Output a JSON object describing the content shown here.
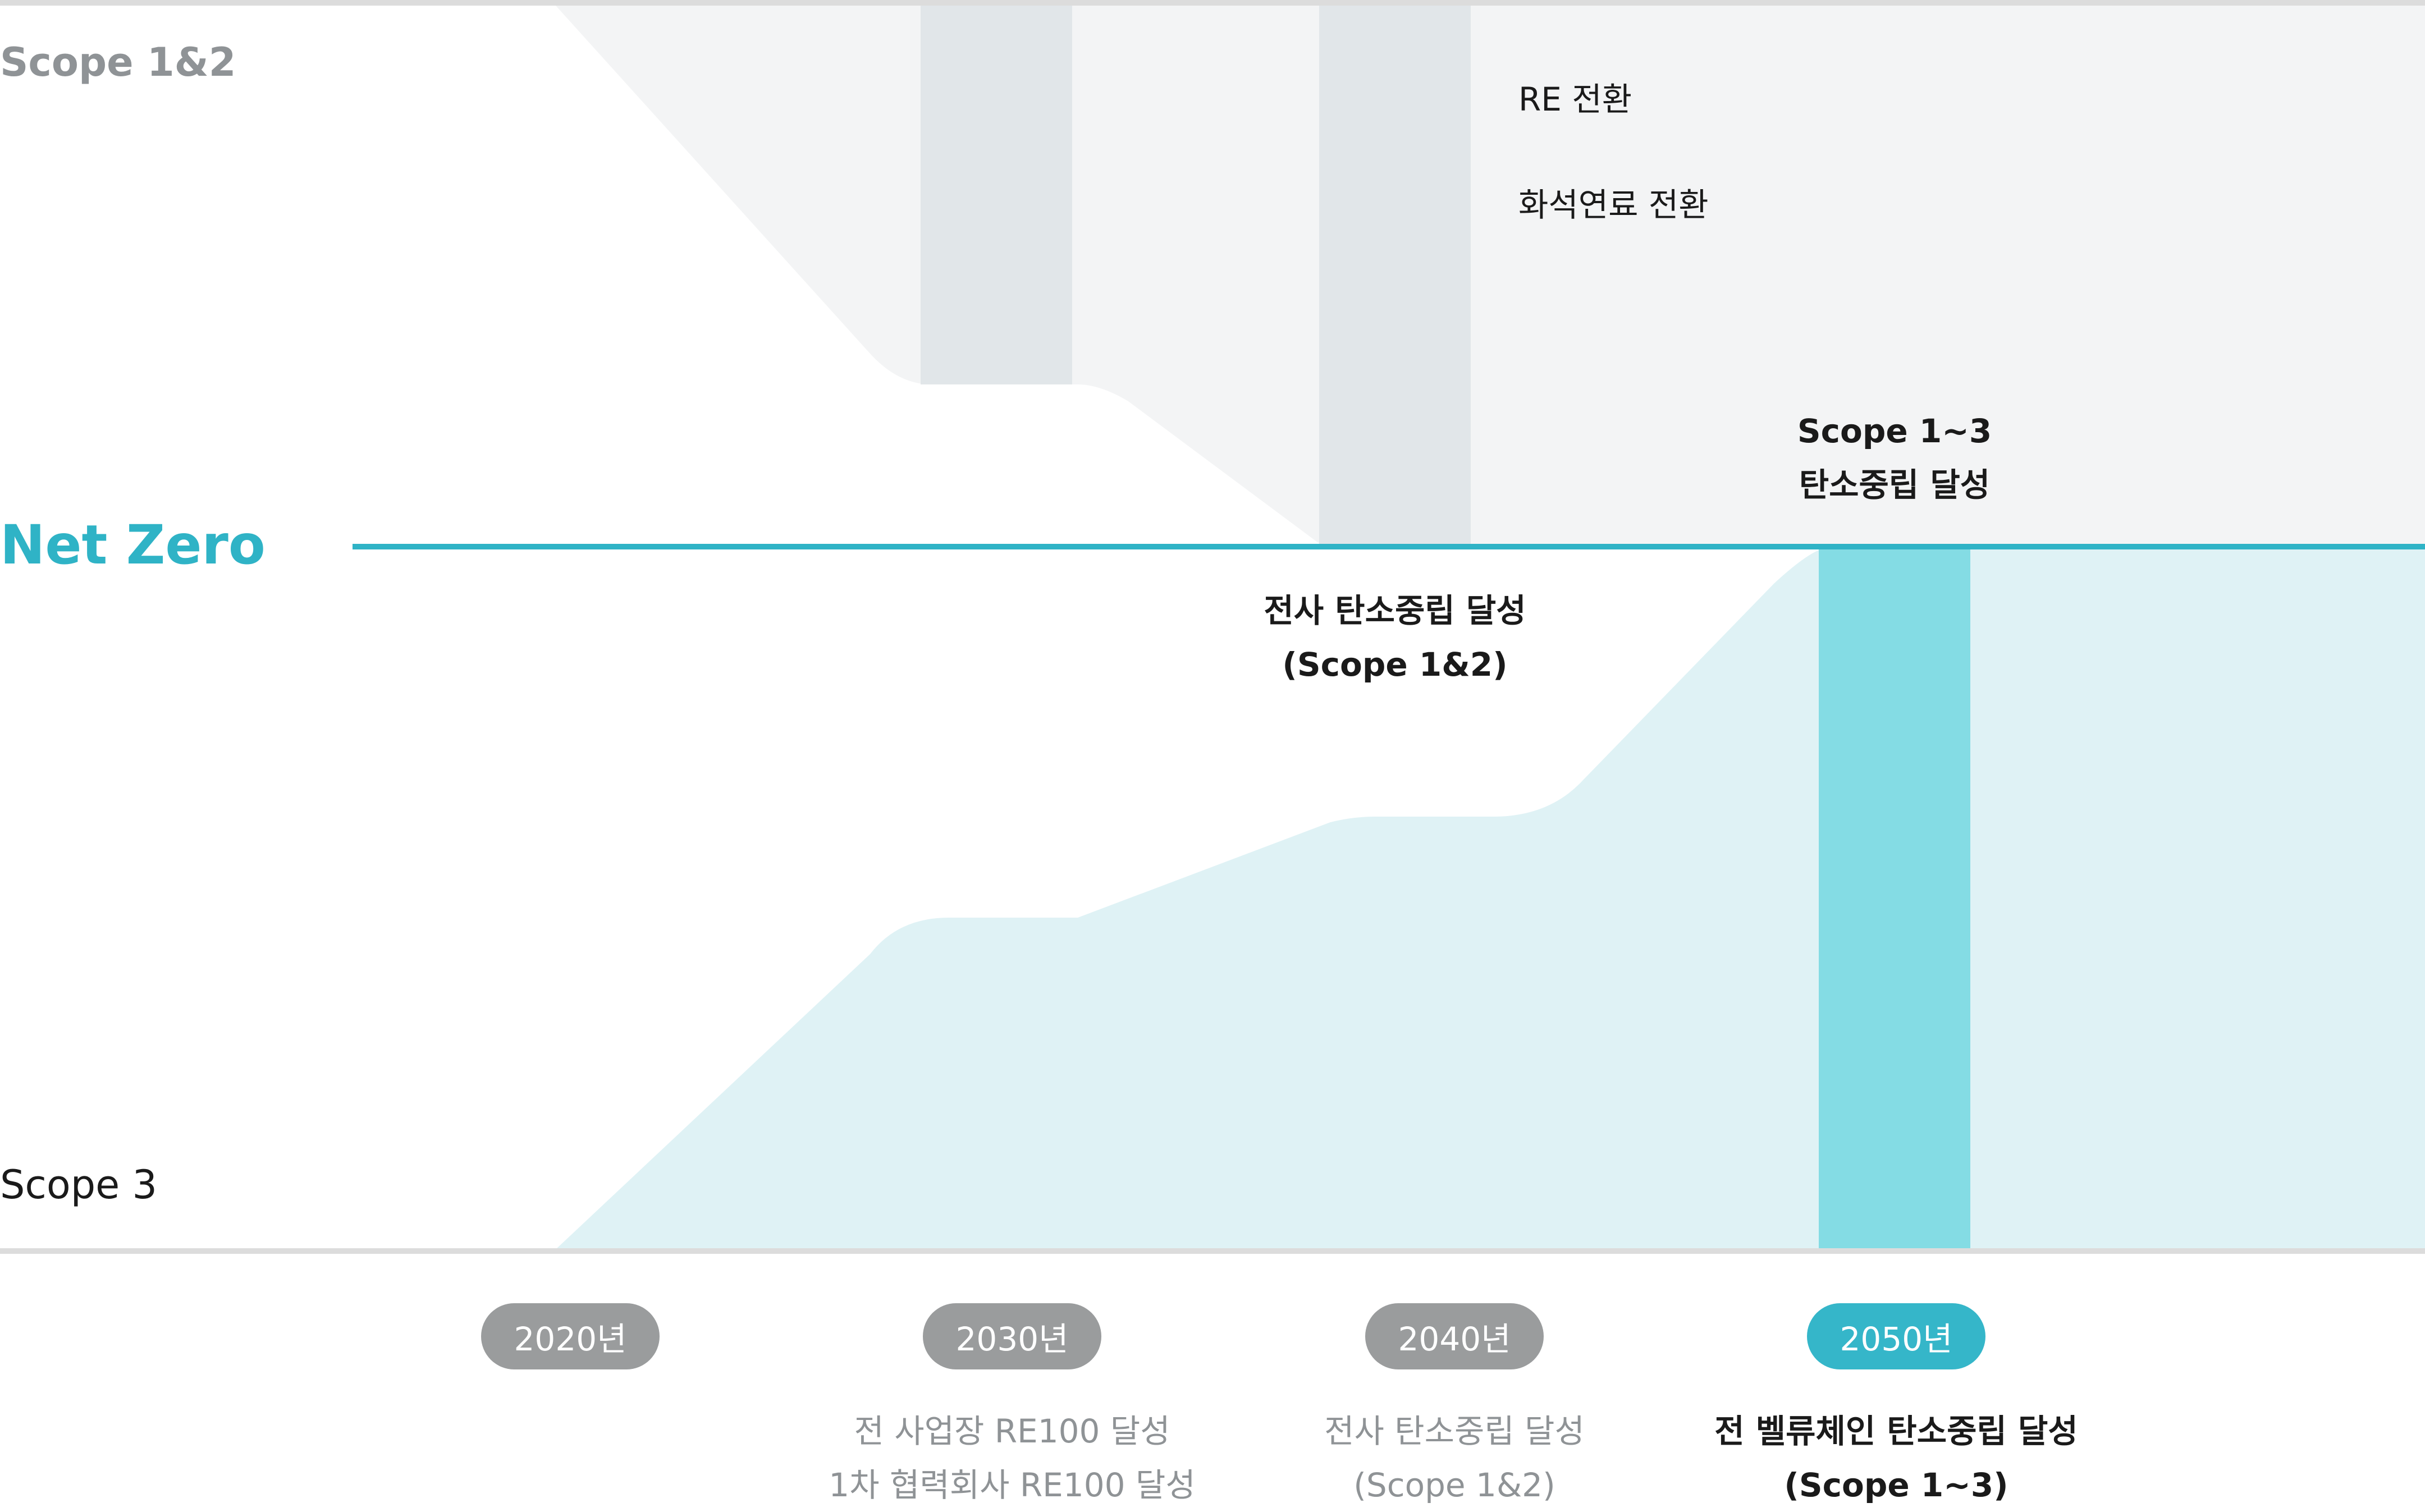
{
  "labels": {
    "scope12": "Scope 1&2",
    "net_zero": "Net Zero",
    "scope3": "Scope 3"
  },
  "notes": {
    "re": "RE 전환",
    "fossil": "화석연료 전환"
  },
  "milestones": {
    "scope13_line1": "Scope 1~3",
    "scope13_line2": "탄소중립 달성",
    "company_line1": "전사 탄소중립 달성",
    "company_line2": "(Scope 1&2)"
  },
  "timeline": [
    {
      "year": "2020년",
      "desc": []
    },
    {
      "year": "2030년",
      "desc": [
        "전 사업장 RE100 달성",
        "1차 협력회사 RE100 달성"
      ]
    },
    {
      "year": "2040년",
      "desc": [
        "전사 탄소중립 달성",
        "(Scope 1&2)"
      ]
    },
    {
      "year": "2050년",
      "desc": [
        "전 벨류체인 탄소중립 달성",
        "(Scope 1~3)"
      ]
    }
  ],
  "colors": {
    "accent": "#2fb3c6",
    "scope12_area": "#f3f4f5",
    "scope12_column": "#e1e6e9",
    "scope3_area": "#dff2f5",
    "scope3_column": "#84dce4",
    "grey_pill": "#9a9c9d"
  }
}
